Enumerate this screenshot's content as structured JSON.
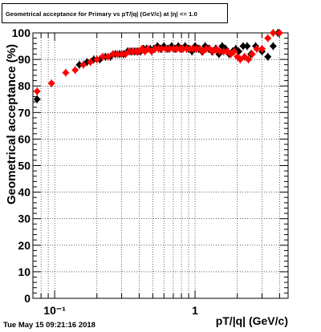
{
  "chart_data": {
    "type": "scatter",
    "title": "Geometrical acceptance for Primary vs pT/|q| (GeV/c) at |η| <= 1.0",
    "xlabel": "pT/|q| (GeV/c)",
    "ylabel": "Geometrical acceptance (%)",
    "x_scale": "log",
    "xlim": [
      0.07,
      4.6
    ],
    "ylim": [
      0,
      100
    ],
    "x_tick_labels": [
      "10⁻¹",
      "1"
    ],
    "y_tick_labels": [
      "0",
      "10",
      "20",
      "30",
      "40",
      "50",
      "60",
      "70",
      "80",
      "90",
      "100"
    ],
    "grid": true,
    "series": [
      {
        "color": "#000000",
        "marker": "diamond",
        "x": [
          0.075,
          0.15,
          0.17,
          0.19,
          0.21,
          0.23,
          0.25,
          0.27,
          0.29,
          0.31,
          0.33,
          0.35,
          0.37,
          0.39,
          0.41,
          0.43,
          0.45,
          0.48,
          0.51,
          0.54,
          0.57,
          0.6,
          0.64,
          0.68,
          0.72,
          0.76,
          0.8,
          0.85,
          0.9,
          0.95,
          1.0,
          1.06,
          1.12,
          1.18,
          1.25,
          1.32,
          1.4,
          1.48,
          1.56,
          1.65,
          1.75,
          1.85,
          1.95,
          2.05,
          2.2,
          2.35,
          2.5,
          2.7,
          3.0,
          3.3,
          3.6,
          3.9
        ],
        "y": [
          75,
          88,
          89,
          90,
          90,
          91,
          91,
          92,
          92,
          92,
          93,
          93,
          93,
          93,
          93,
          94,
          94,
          94,
          94,
          95,
          94,
          95,
          94,
          95,
          94,
          95,
          94,
          95,
          94,
          93,
          95,
          94,
          93,
          95,
          94,
          93,
          94,
          92,
          95,
          94,
          92,
          93,
          94,
          93,
          95,
          95,
          92,
          95,
          93,
          91,
          95,
          100
        ]
      },
      {
        "color": "#ff0000",
        "marker": "diamond",
        "x": [
          0.075,
          0.095,
          0.12,
          0.14,
          0.16,
          0.18,
          0.2,
          0.22,
          0.24,
          0.26,
          0.28,
          0.3,
          0.32,
          0.34,
          0.36,
          0.38,
          0.4,
          0.42,
          0.44,
          0.46,
          0.49,
          0.52,
          0.55,
          0.58,
          0.62,
          0.66,
          0.7,
          0.74,
          0.78,
          0.82,
          0.87,
          0.92,
          0.97,
          1.02,
          1.08,
          1.14,
          1.2,
          1.27,
          1.34,
          1.42,
          1.5,
          1.6,
          1.7,
          1.8,
          1.9,
          2.0,
          2.1,
          2.25,
          2.4,
          2.55,
          2.75,
          3.0,
          3.3,
          3.6,
          4.0
        ],
        "y": [
          78,
          81,
          85,
          86,
          88,
          89,
          90,
          91,
          91,
          92,
          92,
          92,
          92,
          93,
          93,
          93,
          93,
          94,
          93,
          94,
          93,
          94,
          94,
          94,
          94,
          94,
          94,
          94,
          94,
          94,
          94,
          94,
          94,
          94,
          94,
          93,
          94,
          94,
          93,
          94,
          93,
          93,
          93,
          92,
          93,
          91,
          90,
          91,
          90,
          92,
          94,
          94,
          98,
          100,
          100
        ]
      }
    ]
  },
  "timestamp": "Tue May 15 09:21:16 2018"
}
